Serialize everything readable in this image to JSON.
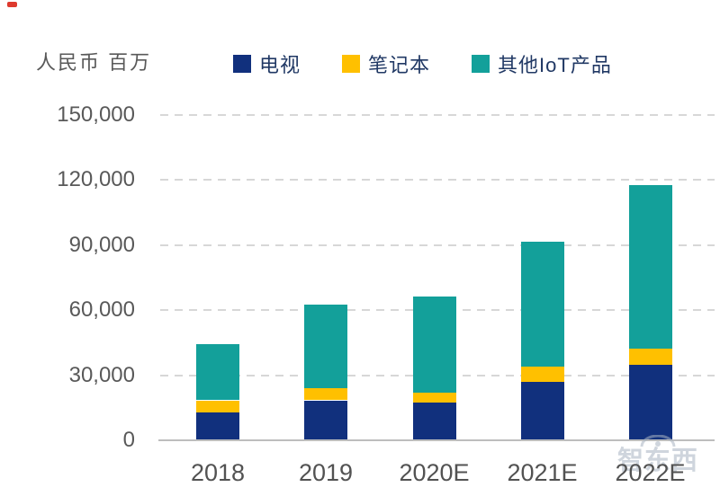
{
  "chart": {
    "unit_label": "人民币 百万",
    "watermark_text": "智东西",
    "background": "#ffffff",
    "red_dot_color": "#de3a2e"
  },
  "chart_data": {
    "type": "bar",
    "stacked": true,
    "title": "",
    "unit_label": "人民币 百万",
    "categories": [
      "2018",
      "2019",
      "2020E",
      "2021E",
      "2022E"
    ],
    "series": [
      {
        "name": "电视",
        "color": "#11307d",
        "values": [
          12500,
          18000,
          17000,
          26500,
          34500
        ]
      },
      {
        "name": "笔记本",
        "color": "#ffc000",
        "values": [
          5500,
          5700,
          4500,
          7000,
          7500
        ]
      },
      {
        "name": "其他IoT产品",
        "color": "#13a09a",
        "values": [
          25800,
          38300,
          44500,
          57500,
          75000
        ]
      }
    ],
    "totals": [
      43800,
      62000,
      66000,
      91000,
      117000
    ],
    "ylim": [
      0,
      150000
    ],
    "yticks": [
      0,
      30000,
      60000,
      90000,
      120000,
      150000
    ],
    "ytick_labels": [
      "0",
      "30,000",
      "60,000",
      "90,000",
      "120,000",
      "150,000"
    ],
    "grid": "horizontal-dashed",
    "legend_position": "top",
    "colors": {
      "axis_line": "#bdbdbd",
      "gridline": "#d7d7d7",
      "axis_text": "#595959",
      "legend_text": "#203864"
    }
  }
}
